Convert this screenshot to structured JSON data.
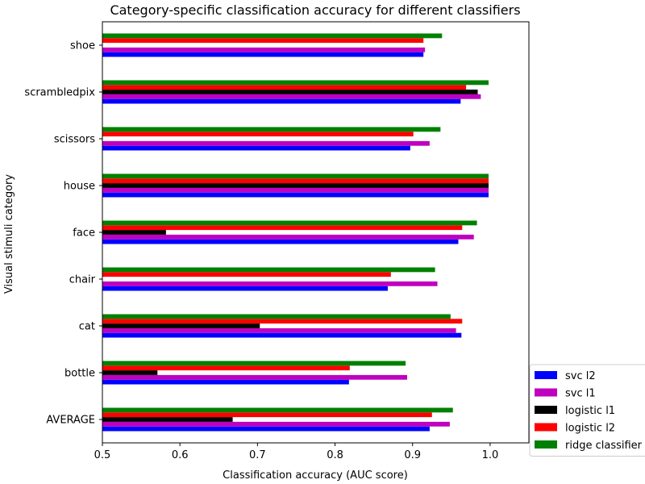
{
  "chart_data": {
    "type": "bar",
    "orientation": "horizontal",
    "title": "Category-specific classification accuracy for different classifiers",
    "xlabel": "Classification accuracy (AUC score)",
    "ylabel": "Visual stimuli category",
    "xlim": [
      0.5,
      1.05
    ],
    "xticks": [
      "0.5",
      "0.6",
      "0.7",
      "0.8",
      "0.9",
      "1.0"
    ],
    "categories": [
      "AVERAGE",
      "bottle",
      "cat",
      "chair",
      "face",
      "house",
      "scissors",
      "scrambledpix",
      "shoe"
    ],
    "legend_position": "lower-right (outside axes)",
    "grid": false,
    "series": [
      {
        "name": "svc l2",
        "color": "#0000ff",
        "values": [
          0.922,
          0.818,
          0.963,
          0.868,
          0.959,
          0.998,
          0.897,
          0.962,
          0.914
        ]
      },
      {
        "name": "svc l1",
        "color": "#bf00bf",
        "values": [
          0.948,
          0.893,
          0.956,
          0.932,
          0.979,
          0.998,
          0.922,
          0.988,
          0.916
        ]
      },
      {
        "name": "logistic l1",
        "color": "#000000",
        "values": [
          0.668,
          0.571,
          0.703,
          null,
          0.582,
          0.998,
          null,
          0.984,
          null
        ]
      },
      {
        "name": "logistic l2",
        "color": "#ff0000",
        "values": [
          0.925,
          0.819,
          0.964,
          0.872,
          0.964,
          0.998,
          0.901,
          0.969,
          0.914
        ]
      },
      {
        "name": "ridge classifier",
        "color": "#008000",
        "values": [
          0.952,
          0.891,
          0.949,
          0.929,
          0.983,
          0.998,
          0.936,
          0.998,
          0.938
        ]
      }
    ]
  }
}
